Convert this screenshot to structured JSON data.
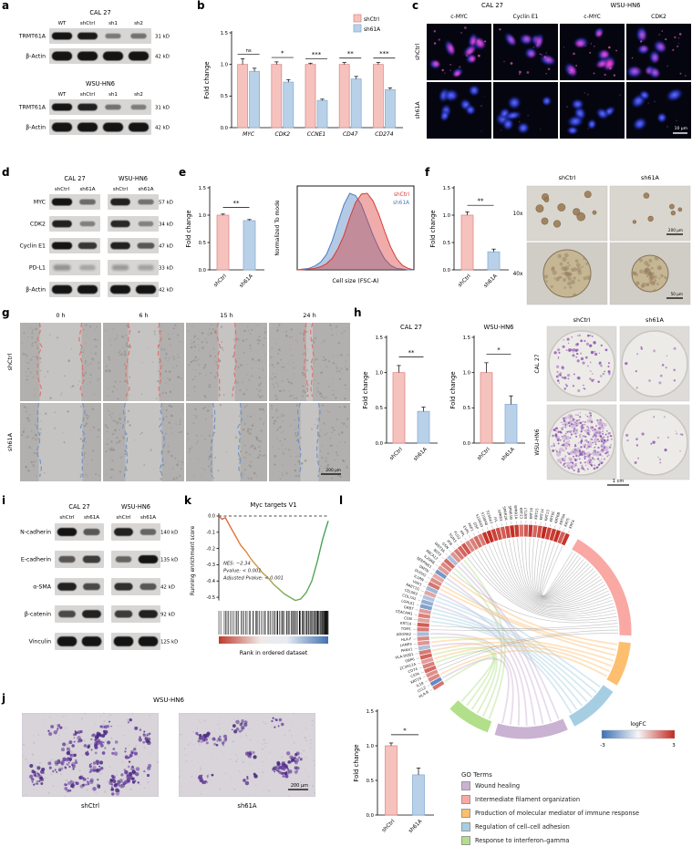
{
  "figure": {
    "panel_labels": [
      "a",
      "b",
      "c",
      "d",
      "e",
      "f",
      "g",
      "h",
      "i",
      "j",
      "k",
      "l"
    ]
  },
  "colors": {
    "shctrl_fill": "#f6c2be",
    "shctrl_edge": "#df8d87",
    "sh61a_fill": "#b9d1e8",
    "sh61a_edge": "#89afd3",
    "hist_red": "#d93a36",
    "hist_blue": "#4d7fbe",
    "wound_red": "#e0716e",
    "wound_blue": "#6d92cc",
    "band": "#141414",
    "blot_bg": "#d8d6d4"
  },
  "panel_a": {
    "blocks": [
      {
        "title": "CAL 27",
        "lanes": [
          "WT",
          "shCtrl",
          "sh1",
          "sh2"
        ],
        "rows": [
          {
            "protein": "TRMT61A",
            "kd": "31 kD",
            "groups": [
              [
                1,
                0.95,
                0.25,
                0.3
              ]
            ]
          },
          {
            "protein": "β-Actin",
            "kd": "42 kD",
            "scale": 1.25,
            "groups": [
              [
                1,
                1,
                1,
                1
              ]
            ]
          }
        ]
      },
      {
        "title": "WSU-HN6",
        "lanes": [
          "WT",
          "shCtrl",
          "sh1",
          "sh2"
        ],
        "rows": [
          {
            "protein": "TRMT61A",
            "kd": "31 kD",
            "groups": [
              [
                1,
                0.9,
                0.3,
                0.22
              ]
            ]
          },
          {
            "protein": "β-Actin",
            "kd": "42 kD",
            "scale": 1.25,
            "groups": [
              [
                1,
                1,
                1,
                1
              ]
            ]
          }
        ]
      }
    ]
  },
  "panel_b": {
    "chart_data": {
      "type": "bar",
      "categories": [
        "MYC",
        "CDK2",
        "CCNE1",
        "CD47",
        "CD274"
      ],
      "series": [
        {
          "name": "shCtrl",
          "values": [
            1.0,
            1.0,
            1.0,
            1.0,
            1.0
          ],
          "errors": [
            0.09,
            0.04,
            0.02,
            0.03,
            0.03
          ]
        },
        {
          "name": "sh61A",
          "values": [
            0.89,
            0.72,
            0.43,
            0.77,
            0.6
          ],
          "errors": [
            0.05,
            0.04,
            0.02,
            0.04,
            0.03
          ]
        }
      ],
      "significance": [
        "ns",
        "*",
        "***",
        "**",
        "***"
      ],
      "ylabel": "Fold change",
      "ylim": [
        0,
        1.5
      ],
      "yticks": [
        0,
        0.5,
        1,
        1.5
      ],
      "legend": [
        "shCtrl",
        "sh61A"
      ]
    }
  },
  "panel_c": {
    "group_titles": [
      "CAL 27",
      "WSU-HN6"
    ],
    "col_titles": [
      "c-MYC",
      "Cyclin E1",
      "c-MYC",
      "CDK2"
    ],
    "row_titles": [
      "shCtrl",
      "sh61A"
    ],
    "scale_bar": "10 µm",
    "magenta_levels": [
      [
        0.85,
        0.55,
        0.8,
        0.5
      ],
      [
        0.12,
        0.1,
        0.15,
        0.1
      ]
    ]
  },
  "panel_d": {
    "group_titles": [
      "CAL 27",
      "WSU-HN6"
    ],
    "lanes": [
      "shCtrl",
      "sh61A"
    ],
    "rows": [
      {
        "protein": "MYC",
        "kd": "57 kD",
        "groups": [
          [
            1,
            0.35
          ],
          [
            0.9,
            0.3
          ]
        ]
      },
      {
        "protein": "CDK2",
        "kd": "34 kD",
        "groups": [
          [
            0.9,
            0.2
          ],
          [
            0.85,
            0.18
          ]
        ]
      },
      {
        "protein": "Cyclin E1",
        "kd": "47 kD",
        "groups": [
          [
            1,
            0.75
          ],
          [
            0.9,
            0.5
          ]
        ]
      },
      {
        "protein": "PD-L1",
        "kd": "33 kD",
        "fuzzy": true,
        "groups": [
          [
            0.55,
            0.3
          ],
          [
            0.45,
            0.35
          ]
        ]
      },
      {
        "protein": "β-Actin",
        "kd": "42 kD",
        "scale": 1.2,
        "groups": [
          [
            1,
            1
          ],
          [
            1,
            1
          ]
        ]
      }
    ]
  },
  "panel_e": {
    "chart_data": {
      "type": "bar",
      "categories": [
        "shCtrl",
        "sh61A"
      ],
      "values": [
        1.0,
        0.9
      ],
      "errors": [
        0.02,
        0.02
      ],
      "significance": "**",
      "ylabel": "Fold change",
      "ylim": [
        0,
        1.5
      ],
      "yticks": [
        0,
        0.5,
        1,
        1.5
      ]
    },
    "hist": {
      "ylabel": "Normalized To mode",
      "xlabel": "Cell size (FSC-A)",
      "legend": [
        "shCtrl",
        "sh61A"
      ],
      "shctrl_y": [
        0,
        0,
        0.01,
        0.02,
        0.04,
        0.08,
        0.15,
        0.28,
        0.45,
        0.68,
        0.88,
        0.99,
        1.0,
        0.9,
        0.72,
        0.5,
        0.3,
        0.15,
        0.06,
        0.02,
        0
      ],
      "sh61a_y": [
        0,
        0.01,
        0.02,
        0.05,
        0.1,
        0.2,
        0.38,
        0.62,
        0.85,
        1.0,
        0.97,
        0.85,
        0.65,
        0.45,
        0.28,
        0.14,
        0.06,
        0.02,
        0.01,
        0,
        0
      ]
    }
  },
  "panel_f": {
    "chart_data": {
      "type": "bar",
      "categories": [
        "shCtrl",
        "sh61A"
      ],
      "values": [
        1.0,
        0.33
      ],
      "errors": [
        0.06,
        0.05
      ],
      "significance": "**",
      "ylabel": "Fold change",
      "ylim": [
        0,
        1.5
      ],
      "yticks": [
        0,
        0.5,
        1,
        1.5
      ]
    },
    "images": {
      "col_titles": [
        "shCtrl",
        "sh61A"
      ],
      "row_titles": [
        "10x",
        "40x"
      ],
      "scale_bars": [
        "200 µm",
        "50 µm"
      ]
    }
  },
  "panel_g": {
    "timepoints": [
      "0 h",
      "6 h",
      "15 h",
      "24 h"
    ],
    "row_titles": [
      "shCtrl",
      "sh61A"
    ],
    "gaps": [
      [
        46,
        34,
        18,
        7
      ],
      [
        48,
        40,
        30,
        20
      ]
    ],
    "scale_bar": "200 µm"
  },
  "panel_h": {
    "charts": [
      {
        "type": "bar",
        "title": "CAL 27",
        "categories": [
          "shCtrl",
          "sh61A"
        ],
        "values": [
          1.0,
          0.45
        ],
        "errors": [
          0.1,
          0.06
        ],
        "significance": "**",
        "ylabel": "Fold change",
        "ylim": [
          0,
          1.5
        ],
        "yticks": [
          0,
          0.5,
          1,
          1.5
        ]
      },
      {
        "type": "bar",
        "title": "WSU-HN6",
        "categories": [
          "shCtrl",
          "sh61A"
        ],
        "values": [
          1.0,
          0.55
        ],
        "errors": [
          0.14,
          0.12
        ],
        "significance": "*",
        "ylabel": "Fold change",
        "ylim": [
          0,
          1.5
        ],
        "yticks": [
          0,
          0.5,
          1,
          1.5
        ]
      }
    ],
    "images": {
      "col_titles": [
        "shCtrl",
        "sh61A"
      ],
      "row_titles": [
        "CAL 27",
        "WSU-HN6"
      ],
      "densities": [
        [
          90,
          16
        ],
        [
          320,
          22
        ]
      ],
      "scale_bar": "1 cm"
    }
  },
  "panel_i": {
    "group_titles": [
      "CAL 27",
      "WSU-HN6"
    ],
    "lanes": [
      "shCtrl",
      "sh61A"
    ],
    "rows": [
      {
        "protein": "N-cadherin",
        "kd": "140 kD",
        "groups": [
          [
            1,
            0.5
          ],
          [
            0.9,
            0.4
          ]
        ]
      },
      {
        "protein": "E-cadherin",
        "kd": "135 kD",
        "groups": [
          [
            0.5,
            0.7
          ],
          [
            0.4,
            1
          ]
        ]
      },
      {
        "protein": "α-SMA",
        "kd": "42 kD",
        "groups": [
          [
            0.9,
            0.6
          ],
          [
            0.8,
            0.5
          ]
        ]
      },
      {
        "protein": "β-catenin",
        "kd": "92 kD",
        "groups": [
          [
            0.6,
            0.9
          ],
          [
            0.7,
            0.9
          ]
        ]
      },
      {
        "protein": "Vinculin",
        "kd": "125 kD",
        "scale": 1.2,
        "groups": [
          [
            1,
            1
          ],
          [
            1,
            1
          ]
        ]
      }
    ]
  },
  "panel_j": {
    "title": "WSU-HN6",
    "image_labels": [
      "shCtrl",
      "sh61A"
    ],
    "scale_bar": "200 µm",
    "clusters": [
      26,
      11
    ],
    "chart_data": {
      "type": "bar",
      "categories": [
        "shCtrl",
        "sh61A"
      ],
      "values": [
        1.0,
        0.58
      ],
      "errors": [
        0.04,
        0.1
      ],
      "significance": "*",
      "ylabel": "Fold change",
      "ylim": [
        0,
        1.5
      ],
      "yticks": [
        0,
        0.5,
        1,
        1.5
      ]
    }
  },
  "panel_k": {
    "chart_data": {
      "type": "line",
      "title": "Myc targets V1",
      "ylabel": "Running enrichment score",
      "xlabel": "Rank in ordered dataset",
      "yticks": [
        0,
        -0.1,
        -0.2,
        -0.3,
        -0.4,
        -0.5
      ],
      "stats": [
        "NES: −2.34",
        "Pvalue: < 0.001",
        "Adjusted Pvalue: < 0.001"
      ],
      "points": [
        [
          0,
          0
        ],
        [
          0.03,
          -0.02
        ],
        [
          0.06,
          -0.01
        ],
        [
          0.1,
          -0.06
        ],
        [
          0.15,
          -0.12
        ],
        [
          0.2,
          -0.18
        ],
        [
          0.25,
          -0.22
        ],
        [
          0.3,
          -0.27
        ],
        [
          0.35,
          -0.31
        ],
        [
          0.4,
          -0.35
        ],
        [
          0.45,
          -0.38
        ],
        [
          0.5,
          -0.42
        ],
        [
          0.55,
          -0.45
        ],
        [
          0.6,
          -0.48
        ],
        [
          0.65,
          -0.5
        ],
        [
          0.7,
          -0.52
        ],
        [
          0.75,
          -0.51
        ],
        [
          0.8,
          -0.47
        ],
        [
          0.85,
          -0.4
        ],
        [
          0.9,
          -0.28
        ],
        [
          0.95,
          -0.14
        ],
        [
          1,
          -0.03
        ]
      ]
    }
  },
  "panel_l": {
    "legend_title": "GO Terms",
    "go_terms": [
      {
        "label": "Wound healing",
        "color": "#cab2d2",
        "span": [
          -66,
          -106
        ]
      },
      {
        "label": "Intermediate filament organization",
        "color": "#f9a8a3",
        "span": [
          60,
          -2
        ]
      },
      {
        "label": "Production of molecular mediator of immune response",
        "color": "#fdbf6f",
        "span": [
          -6,
          -30
        ]
      },
      {
        "label": "Regulation of cell–cell adhesion",
        "color": "#a6cee3",
        "span": [
          -34,
          -62
        ]
      },
      {
        "label": "Response to interferon–gamma",
        "color": "#b2df8a",
        "span": [
          -110,
          -134
        ]
      }
    ],
    "logfc": {
      "title": "logFC",
      "min": -3,
      "max": 3,
      "neg_color": "#3b6fb5",
      "mid_color": "#f7f7f7",
      "pos_color": "#c3271d"
    },
    "genes": [
      {
        "n": "KRT4",
        "f": 2.8,
        "t": 1
      },
      {
        "n": "KRT5",
        "f": 2.2,
        "t": 1
      },
      {
        "n": "KRT6A",
        "f": 2.9,
        "t": 1
      },
      {
        "n": "KRT6B",
        "f": 2.7,
        "t": 1
      },
      {
        "n": "KRT6C",
        "f": 2.6,
        "t": 1
      },
      {
        "n": "KRT13",
        "f": 3.0,
        "t": 1
      },
      {
        "n": "KRT14",
        "f": 2.4,
        "t": 1
      },
      {
        "n": "KRT15",
        "f": 2.1,
        "t": 1
      },
      {
        "n": "KRT16",
        "f": 2.8,
        "t": 1
      },
      {
        "n": "KRT17",
        "f": 2.3,
        "t": 1
      },
      {
        "n": "KRT23",
        "f": 1.9,
        "t": 1
      },
      {
        "n": "SPRR1A",
        "f": 2.7,
        "t": 1
      },
      {
        "n": "SPRR1B",
        "f": 2.9,
        "t": 1
      },
      {
        "n": "SPRR2A",
        "f": 2.5,
        "t": 1
      },
      {
        "n": "SPRR3",
        "f": 2.2,
        "t": 1
      },
      {
        "n": "IVL",
        "f": 2.4,
        "t": 1
      },
      {
        "n": "S100A7",
        "f": 2.6,
        "t": 1
      },
      {
        "n": "S100A8",
        "f": 2.9,
        "t": 1
      },
      {
        "n": "S100A9",
        "f": 2.8,
        "t": 1
      },
      {
        "n": "DSP",
        "f": 1.8,
        "t": 1
      },
      {
        "n": "PKP1",
        "f": 2.0,
        "t": 1
      },
      {
        "n": "EVPL",
        "f": 1.7,
        "t": 1
      },
      {
        "n": "PPL",
        "f": 1.6,
        "t": 1
      },
      {
        "n": "FLG2",
        "f": 2.3,
        "t": 1
      },
      {
        "n": "TGM3",
        "f": 2.1,
        "t": 1
      },
      {
        "n": "IFI6",
        "f": 1.8,
        "t": 4
      },
      {
        "n": "GSN",
        "f": 1.4,
        "t": 0
      },
      {
        "n": "WNT3A",
        "f": -1.2,
        "t": 0
      },
      {
        "n": "BST2",
        "f": 2.0,
        "t": 4
      },
      {
        "n": "ABCA12",
        "f": 1.6,
        "t": 1
      },
      {
        "n": "IL20RB",
        "f": 1.3,
        "t": 2
      },
      {
        "n": "SERPINE1",
        "f": -2.1,
        "t": 0
      },
      {
        "n": "DMTN",
        "f": 1.1,
        "t": 3
      },
      {
        "n": "DUOX2",
        "f": 1.5,
        "t": 2
      },
      {
        "n": "IL1RN",
        "f": 1.9,
        "t": 2
      },
      {
        "n": "VAV3",
        "f": -1.4,
        "t": 0
      },
      {
        "n": "RAET1G",
        "f": 1.2,
        "t": 3
      },
      {
        "n": "CELSR2",
        "f": -1.1,
        "t": 3
      },
      {
        "n": "COL7A1",
        "f": -1.6,
        "t": 0
      },
      {
        "n": "LGALS1",
        "f": -1.9,
        "t": 3
      },
      {
        "n": "GRB7",
        "f": 1.3,
        "t": 3
      },
      {
        "n": "CEACAM1",
        "f": 1.7,
        "t": 3
      },
      {
        "n": "CGN",
        "f": 1.2,
        "t": 3
      },
      {
        "n": "KRT10",
        "f": 2.2,
        "t": 1
      },
      {
        "n": "TGM1",
        "f": 1.8,
        "t": 1
      },
      {
        "n": "ADGRA2",
        "f": -1.3,
        "t": 0
      },
      {
        "n": "HLA-F",
        "f": 1.6,
        "t": 4
      },
      {
        "n": "LAMP3",
        "f": 1.4,
        "t": 2
      },
      {
        "n": "PANX1",
        "f": -1.2,
        "t": 0
      },
      {
        "n": "HLA-DQB1",
        "f": 1.8,
        "t": 2
      },
      {
        "n": "GBP6",
        "f": 2.1,
        "t": 4
      },
      {
        "n": "ZC3H12A",
        "f": 1.3,
        "t": 2
      },
      {
        "n": "CD74",
        "f": 1.7,
        "t": 4
      },
      {
        "n": "CSTA",
        "f": 2.0,
        "t": 1
      },
      {
        "n": "KRT19",
        "f": 1.5,
        "t": 1
      },
      {
        "n": "IL18",
        "f": 1.6,
        "t": 2
      },
      {
        "n": "CCL2",
        "f": -2.4,
        "t": 0
      },
      {
        "n": "HLA-B",
        "f": 1.9,
        "t": 4
      }
    ]
  }
}
